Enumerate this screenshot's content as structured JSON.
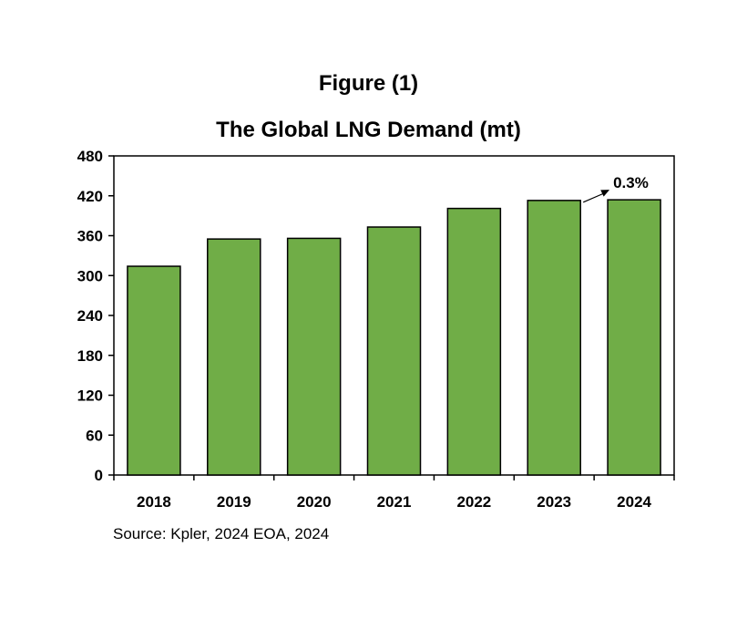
{
  "figure_label": "Figure (1)",
  "source_text": "Source: Kpler, 2024  EOA, 2024",
  "chart_data": {
    "type": "bar",
    "title": "The Global LNG Demand (mt)",
    "xlabel": "",
    "ylabel": "",
    "categories": [
      "2018",
      "2019",
      "2020",
      "2021",
      "2022",
      "2023",
      "2024"
    ],
    "values": [
      314,
      355,
      356,
      373,
      401,
      413,
      414
    ],
    "ylim": [
      0,
      480
    ],
    "yticks": [
      0,
      60,
      120,
      180,
      240,
      300,
      360,
      420,
      480
    ],
    "grid": false,
    "bar_color": "#70ad47",
    "annotation": {
      "text": "0.3%",
      "from": "2023",
      "to": "2024"
    }
  }
}
